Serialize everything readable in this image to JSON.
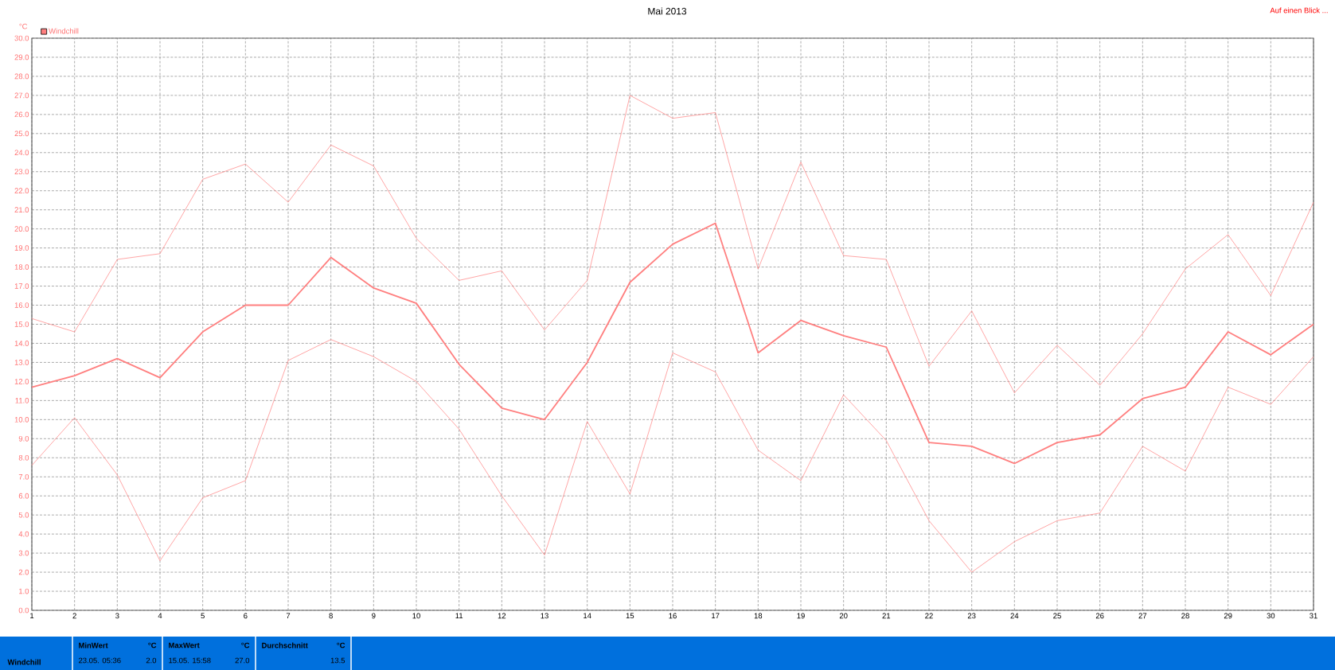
{
  "chart_data": {
    "type": "line",
    "title": "Mai 2013",
    "ylabel": "°C",
    "annotations": [
      "Auf einen Blick ...",
      "Windchill",
      "MinWert",
      "°C",
      "23.05. 05:36",
      "2.0",
      "MaxWert",
      "°C",
      "15.05. 15:58",
      "27.0",
      "Durchschnitt",
      "°C",
      "13.5"
    ],
    "x": [
      1,
      2,
      3,
      4,
      5,
      6,
      7,
      8,
      9,
      10,
      11,
      12,
      13,
      14,
      15,
      16,
      17,
      18,
      19,
      20,
      21,
      22,
      23,
      24,
      25,
      26,
      27,
      28,
      29,
      30,
      31
    ],
    "series": [
      {
        "color": "#ff7f7f",
        "values": [
          15.3,
          14.6,
          18.4,
          18.7,
          22.6,
          23.4,
          21.4,
          24.4,
          23.3,
          19.5,
          17.3,
          17.8,
          14.7,
          17.3,
          27.0,
          25.8,
          26.1,
          17.9,
          23.5,
          18.6,
          18.4,
          12.8,
          15.7,
          11.4,
          13.9,
          11.8,
          14.5,
          17.9,
          19.7,
          16.5,
          21.4
        ]
      },
      {
        "name": "Windchill",
        "color": "#ff7f7f",
        "values": [
          11.7,
          12.3,
          13.2,
          12.2,
          14.6,
          16.0,
          16.0,
          18.5,
          16.9,
          16.1,
          12.9,
          10.6,
          10.0,
          13.0,
          17.2,
          19.2,
          20.3,
          13.5,
          15.2,
          14.4,
          13.8,
          8.8,
          8.6,
          7.7,
          8.8,
          9.2,
          11.1,
          11.7,
          14.6,
          13.4,
          15.0
        ]
      },
      {
        "color": "#ff7f7f",
        "values": [
          7.6,
          10.1,
          7.1,
          2.6,
          5.9,
          6.8,
          13.1,
          14.2,
          13.3,
          12.0,
          9.5,
          6.0,
          2.9,
          9.9,
          6.1,
          13.5,
          12.5,
          8.4,
          6.8,
          11.3,
          8.9,
          4.7,
          2.0,
          3.6,
          4.7,
          5.1,
          8.6,
          7.3,
          11.7,
          10.8,
          13.3
        ]
      }
    ],
    "xlim": [
      1,
      31
    ],
    "xticks": [
      1,
      2,
      3,
      4,
      5,
      6,
      7,
      8,
      9,
      10,
      11,
      12,
      13,
      14,
      15,
      16,
      17,
      18,
      19,
      20,
      21,
      22,
      23,
      24,
      25,
      26,
      27,
      28,
      29,
      30,
      31
    ],
    "ylim": [
      0,
      30
    ],
    "yticks": [
      {
        "value": 0,
        "label": "0.0"
      },
      {
        "value": 1,
        "label": "1.0"
      },
      {
        "value": 2,
        "label": "2.0"
      },
      {
        "value": 3,
        "label": "3.0"
      },
      {
        "value": 4,
        "label": "4.0"
      },
      {
        "value": 5,
        "label": "5.0"
      },
      {
        "value": 6,
        "label": "6.0"
      },
      {
        "value": 7,
        "label": "7.0"
      },
      {
        "value": 8,
        "label": "8.0"
      },
      {
        "value": 9,
        "label": "9.0"
      },
      {
        "value": 10,
        "label": "10.0"
      },
      {
        "value": 11,
        "label": "11.0"
      },
      {
        "value": 12,
        "label": "12.0"
      },
      {
        "value": 13,
        "label": "13.0"
      },
      {
        "value": 14,
        "label": "14.0"
      },
      {
        "value": 15,
        "label": "15.0"
      },
      {
        "value": 16,
        "label": "16.0"
      },
      {
        "value": 17,
        "label": "17.0"
      },
      {
        "value": 18,
        "label": "18.0"
      },
      {
        "value": 19,
        "label": "19.0"
      },
      {
        "value": 20,
        "label": "20.0"
      },
      {
        "value": 21,
        "label": "21.0"
      },
      {
        "value": 22,
        "label": "22.0"
      },
      {
        "value": 23,
        "label": "23.0"
      },
      {
        "value": 24,
        "label": "24.0"
      },
      {
        "value": 25,
        "label": "25.0"
      },
      {
        "value": 26,
        "label": "26.0"
      },
      {
        "value": 27,
        "label": "27.0"
      },
      {
        "value": 28,
        "label": "28.0"
      },
      {
        "value": 29,
        "label": "29.0"
      },
      {
        "value": 30,
        "label": "30.0"
      }
    ],
    "grid": true,
    "legend": "top left"
  }
}
